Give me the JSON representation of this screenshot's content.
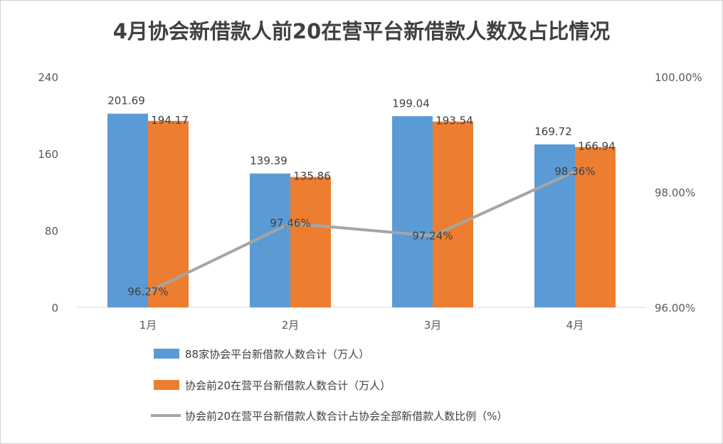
{
  "chart_data": {
    "type": "bar",
    "title": "4月协会新借款人前20在营平台新借款人数及占比情况",
    "categories": [
      "1月",
      "2月",
      "3月",
      "4月"
    ],
    "y_left": {
      "ticks": [
        "0",
        "80",
        "160",
        "240"
      ],
      "ylim": [
        0,
        240
      ]
    },
    "y_right": {
      "ticks": [
        "96.00%",
        "98.00%",
        "100.00%"
      ],
      "ylim": [
        96,
        100
      ]
    },
    "series": [
      {
        "name": "88家协会平台新借款人数合计（万人）",
        "type": "bar",
        "axis": "left",
        "color": "#5B9BD5",
        "values": [
          201.69,
          139.39,
          199.04,
          169.72
        ],
        "labels": [
          "201.69",
          "139.39",
          "199.04",
          "169.72"
        ]
      },
      {
        "name": "协会前20在营平台新借款人数合计（万人）",
        "type": "bar",
        "axis": "left",
        "color": "#ED7D31",
        "values": [
          194.17,
          135.86,
          193.54,
          166.94
        ],
        "labels": [
          "194.17",
          "135.86",
          "193.54",
          "166.94"
        ]
      },
      {
        "name": "协会前20在营平台新借款人数合计占协会全部新借款人数比例（%）",
        "type": "line",
        "axis": "right",
        "color": "#A5A5A5",
        "values": [
          96.27,
          97.46,
          97.24,
          98.36
        ],
        "labels": [
          "96.27%",
          "97.46%",
          "97.24%",
          "98.36%"
        ]
      }
    ]
  }
}
